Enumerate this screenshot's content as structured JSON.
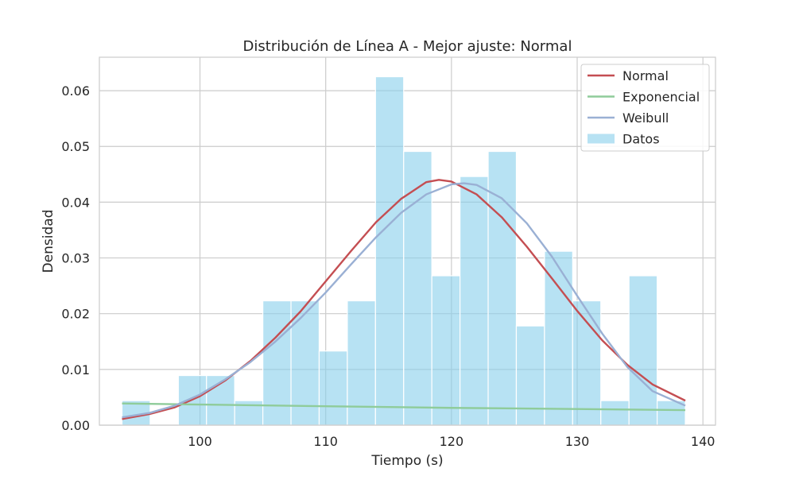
{
  "chart_data": {
    "type": "bar",
    "title": "Distribución de Línea A - Mejor ajuste: Normal",
    "xlabel": "Tiempo (s)",
    "ylabel": "Densidad",
    "xlim": [
      92,
      141
    ],
    "ylim": [
      0,
      0.066
    ],
    "xticks": [
      100,
      110,
      120,
      130,
      140
    ],
    "xtick_labels": [
      "100",
      "110",
      "120",
      "130",
      "140"
    ],
    "yticks": [
      0,
      0.01,
      0.02,
      0.03,
      0.04,
      0.05,
      0.06
    ],
    "ytick_labels": [
      "0.00",
      "0.01",
      "0.02",
      "0.03",
      "0.04",
      "0.05",
      "0.06"
    ],
    "grid": true,
    "legend_position": "top-right",
    "histogram": {
      "name": "Datos",
      "color": "#87ceeb",
      "bin_edges": [
        93.8,
        96.04,
        98.28,
        100.52,
        102.76,
        105.0,
        107.24,
        109.48,
        111.72,
        113.96,
        116.2,
        118.44,
        120.68,
        122.92,
        125.16,
        127.4,
        129.64,
        131.88,
        134.12,
        136.36,
        138.6
      ],
      "values": [
        0.0044,
        0.0,
        0.0089,
        0.0089,
        0.0044,
        0.0223,
        0.0223,
        0.0133,
        0.0223,
        0.0625,
        0.0491,
        0.0268,
        0.0446,
        0.0491,
        0.0178,
        0.0312,
        0.0223,
        0.0044,
        0.0268,
        0.0044
      ]
    },
    "series": [
      {
        "name": "Normal",
        "color": "#c44e52",
        "x": [
          93.8,
          96,
          98,
          100,
          102,
          104,
          106,
          108,
          110,
          112,
          114,
          116,
          118,
          119,
          120,
          122,
          124,
          126,
          128,
          130,
          132,
          134,
          136,
          138.6
        ],
        "values": [
          0.0011,
          0.002,
          0.0032,
          0.0052,
          0.008,
          0.0115,
          0.0157,
          0.0204,
          0.0258,
          0.0312,
          0.0364,
          0.0406,
          0.0436,
          0.044,
          0.0437,
          0.0414,
          0.0373,
          0.032,
          0.0263,
          0.0205,
          0.0152,
          0.0108,
          0.0073,
          0.0044
        ]
      },
      {
        "name": "Exponencial",
        "color": "#8fcc9a",
        "x": [
          93.8,
          100,
          110,
          120,
          130,
          138.6
        ],
        "values": [
          0.0039,
          0.0037,
          0.0034,
          0.0031,
          0.0029,
          0.0027
        ]
      },
      {
        "name": "Weibull",
        "color": "#9ab0d4",
        "x": [
          93.8,
          96,
          98,
          100,
          102,
          104,
          106,
          108,
          110,
          112,
          114,
          116,
          118,
          120,
          121,
          122,
          124,
          126,
          128,
          130,
          132,
          134,
          136,
          138.6
        ],
        "values": [
          0.0014,
          0.0022,
          0.0035,
          0.0055,
          0.0082,
          0.0113,
          0.015,
          0.0192,
          0.0238,
          0.0288,
          0.0337,
          0.0381,
          0.0414,
          0.0432,
          0.0434,
          0.0431,
          0.0407,
          0.0362,
          0.0302,
          0.0232,
          0.0164,
          0.0104,
          0.0061,
          0.0035
        ]
      }
    ]
  }
}
